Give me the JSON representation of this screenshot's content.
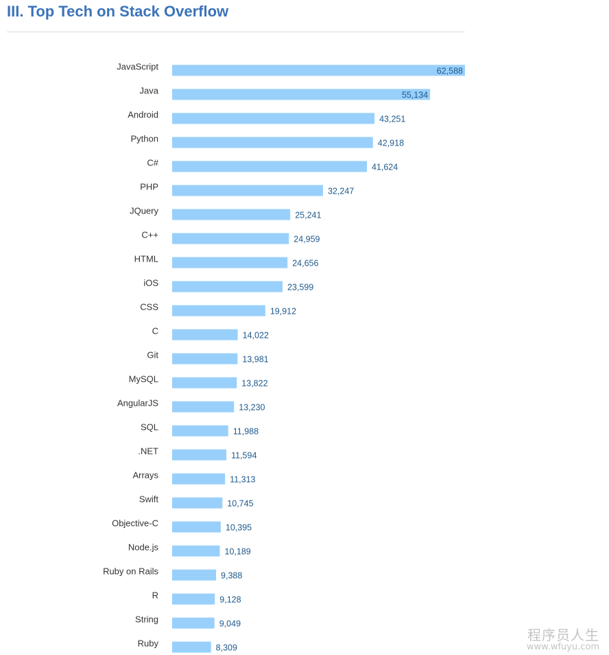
{
  "title": "III. Top Tech on Stack Overflow",
  "chart_data": {
    "type": "bar",
    "orientation": "horizontal",
    "categories": [
      "JavaScript",
      "Java",
      "Android",
      "Python",
      "C#",
      "PHP",
      "JQuery",
      "C++",
      "HTML",
      "iOS",
      "CSS",
      "C",
      "Git",
      "MySQL",
      "AngularJS",
      "SQL",
      ".NET",
      "Arrays",
      "Swift",
      "Objective-C",
      "Node.js",
      "Ruby on Rails",
      "R",
      "String",
      "Ruby"
    ],
    "values": [
      62588,
      55134,
      43251,
      42918,
      41624,
      32247,
      25241,
      24959,
      24656,
      23599,
      19912,
      14022,
      13981,
      13822,
      13230,
      11988,
      11594,
      11313,
      10745,
      10395,
      10189,
      9388,
      9128,
      9049,
      8309
    ],
    "value_labels": [
      "62,588",
      "55,134",
      "43,251",
      "42,918",
      "41,624",
      "32,247",
      "25,241",
      "24,959",
      "24,656",
      "23,599",
      "19,912",
      "14,022",
      "13,981",
      "13,822",
      "13,230",
      "11,988",
      "11,594",
      "11,313",
      "10,745",
      "10,395",
      "10,189",
      "9,388",
      "9,128",
      "9,049",
      "8,309"
    ],
    "xlim": [
      0,
      62588
    ],
    "grid": false,
    "legend": "none",
    "bar_color": "#99d0fb",
    "label_color": "#1f5a8c"
  },
  "watermark": {
    "logo": "程序员人生",
    "url": "www.wfuyu.com"
  }
}
